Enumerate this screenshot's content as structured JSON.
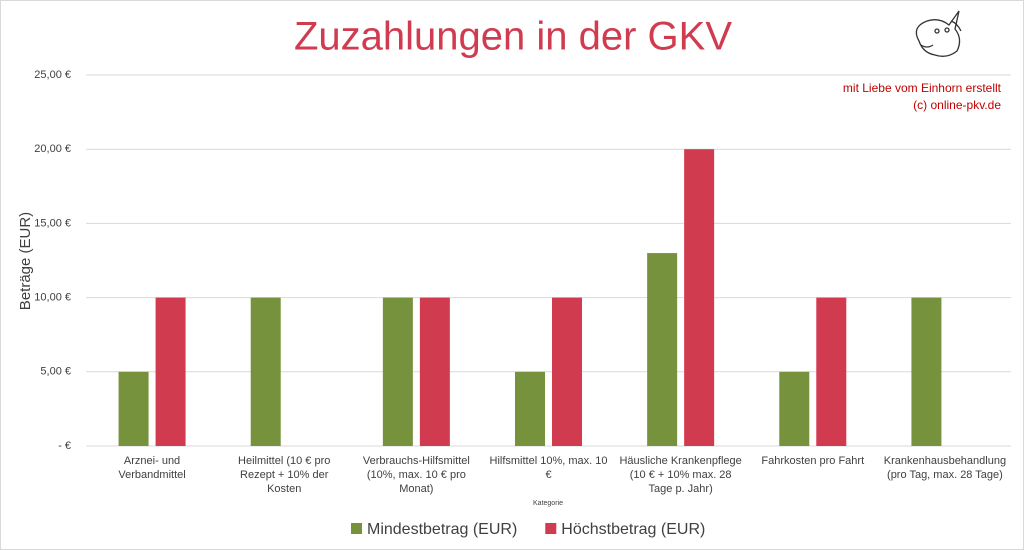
{
  "chart_data": {
    "type": "bar",
    "title": "Zuzahlungen in der GKV",
    "annotations": [
      "mit Liebe vom Einhorn erstellt",
      "(c) online-pkv.de"
    ],
    "x_label": "Kategorie",
    "y_label": "Beträge (EUR)",
    "categories": [
      "Arznei- und Verbandmittel",
      "Heilmittel (10 € pro Rezept + 10% der Kosten",
      "Verbrauchs-Hilfsmittel (10%, max. 10 € pro Monat)",
      "Hilfsmittel 10%, max. 10 €",
      "Häusliche Krankenpflege (10 € + 10% max. 28 Tage p. Jahr)",
      "Fahrkosten pro Fahrt",
      "Krankenhausbehandlung (pro Tag, max. 28 Tage)"
    ],
    "series": [
      {
        "name": "Mindestbetrag (EUR)",
        "color": "#76923c",
        "values": [
          5,
          10,
          10,
          5,
          13,
          5,
          10
        ]
      },
      {
        "name": "Höchstbetrag (EUR)",
        "color": "#d13b50",
        "values": [
          10,
          null,
          10,
          10,
          20,
          10,
          null
        ]
      }
    ],
    "ylim": [
      0,
      25
    ],
    "yticks": [
      {
        "value": 0,
        "label": "-   €"
      },
      {
        "value": 5,
        "label": "5,00 €"
      },
      {
        "value": 10,
        "label": "10,00 €"
      },
      {
        "value": 15,
        "label": "15,00 €"
      },
      {
        "value": 20,
        "label": "20,00 €"
      },
      {
        "value": 25,
        "label": "25,00 €"
      }
    ],
    "grid": true,
    "legend": "bottom"
  }
}
